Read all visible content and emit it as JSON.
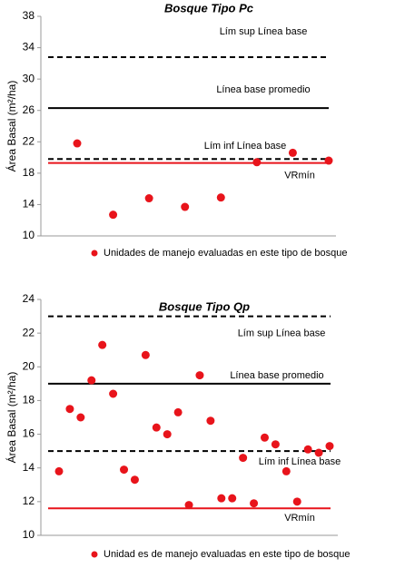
{
  "chart_data": [
    {
      "type": "scatter",
      "title": "Bosque Tipo Pc",
      "y_label": "Área Basal (m²/ha)",
      "categories": [
        null,
        null,
        null,
        null,
        null,
        null,
        null,
        null
      ],
      "series": [
        {
          "name": "Unidades de manejo evaluadas en este tipo de bosque",
          "color": "#e8141b",
          "values": [
            21.8,
            12.7,
            14.8,
            13.7,
            14.9,
            19.4,
            20.6,
            19.6
          ]
        }
      ],
      "reference_lines": [
        {
          "label": "Lím sup Línea base",
          "value": 32.8,
          "style": "dashed",
          "color": "#000000"
        },
        {
          "label": "Línea base promedio",
          "value": 26.3,
          "style": "solid",
          "color": "#000000"
        },
        {
          "label": "Lím inf Línea base",
          "value": 19.8,
          "style": "dashed",
          "color": "#000000"
        },
        {
          "label": "VRmín",
          "value": 19.3,
          "style": "solid",
          "color": "#e8141b"
        }
      ],
      "ylim": [
        10,
        38
      ],
      "yticks": [
        10,
        14,
        18,
        22,
        26,
        30,
        34,
        38
      ]
    },
    {
      "type": "scatter",
      "title": "Bosque Tipo Qp",
      "y_label": "Área Basal (m²/ha)",
      "categories": [
        null,
        null,
        null,
        null,
        null,
        null,
        null,
        null,
        null,
        null,
        null,
        null,
        null,
        null,
        null,
        null,
        null,
        null,
        null,
        null,
        null,
        null,
        null,
        null,
        null,
        null
      ],
      "series": [
        {
          "name": "Unidad es de manejo evaluadas en este tipo de bosque",
          "color": "#e8141b",
          "values": [
            13.8,
            17.5,
            17.0,
            19.2,
            21.3,
            18.4,
            13.9,
            13.3,
            20.7,
            16.4,
            16.0,
            17.3,
            11.8,
            19.5,
            16.8,
            12.2,
            12.2,
            14.6,
            11.9,
            15.8,
            15.4,
            13.8,
            12.0,
            15.1,
            14.9,
            15.3
          ]
        }
      ],
      "reference_lines": [
        {
          "label": "Lím sup Línea base",
          "value": 23,
          "style": "dashed",
          "color": "#000000"
        },
        {
          "label": "Línea base promedio",
          "value": 19,
          "style": "solid",
          "color": "#000000"
        },
        {
          "label": "Lím inf Línea base",
          "value": 15,
          "style": "dashed",
          "color": "#000000"
        },
        {
          "label": "VRmín",
          "value": 11.6,
          "style": "solid",
          "color": "#e8141b"
        }
      ],
      "ylim": [
        10,
        24
      ],
      "yticks": [
        10,
        12,
        14,
        16,
        18,
        20,
        22,
        24
      ]
    }
  ]
}
